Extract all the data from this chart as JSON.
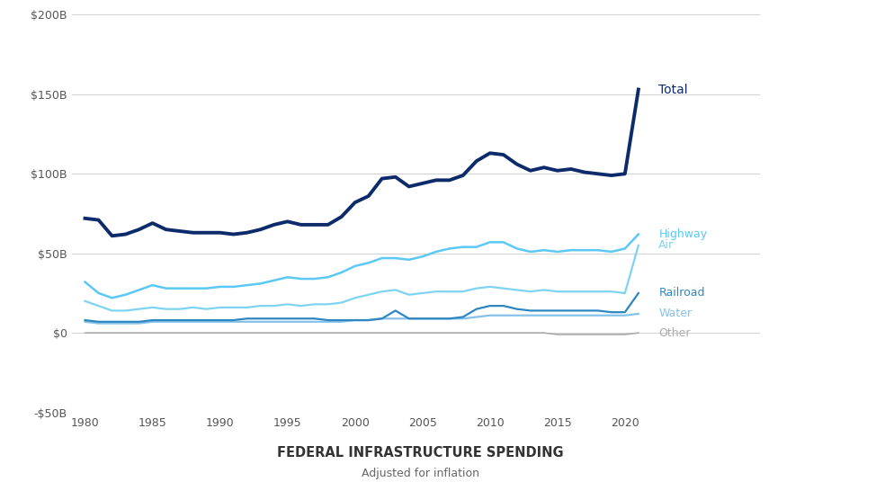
{
  "years": [
    1980,
    1981,
    1982,
    1983,
    1984,
    1985,
    1986,
    1987,
    1988,
    1989,
    1990,
    1991,
    1992,
    1993,
    1994,
    1995,
    1996,
    1997,
    1998,
    1999,
    2000,
    2001,
    2002,
    2003,
    2004,
    2005,
    2006,
    2007,
    2008,
    2009,
    2010,
    2011,
    2012,
    2013,
    2014,
    2015,
    2016,
    2017,
    2018,
    2019,
    2020,
    2021
  ],
  "total": [
    72,
    71,
    61,
    62,
    65,
    69,
    65,
    64,
    63,
    63,
    63,
    62,
    63,
    65,
    68,
    70,
    68,
    68,
    68,
    73,
    82,
    86,
    97,
    98,
    92,
    94,
    96,
    96,
    99,
    108,
    113,
    112,
    106,
    102,
    104,
    102,
    103,
    101,
    100,
    99,
    100,
    153
  ],
  "highway": [
    32,
    25,
    22,
    24,
    27,
    30,
    28,
    28,
    28,
    28,
    29,
    29,
    30,
    31,
    33,
    35,
    34,
    34,
    35,
    38,
    42,
    44,
    47,
    47,
    46,
    48,
    51,
    53,
    54,
    54,
    57,
    57,
    53,
    51,
    52,
    51,
    52,
    52,
    52,
    51,
    53,
    62
  ],
  "air": [
    20,
    17,
    14,
    14,
    15,
    16,
    15,
    15,
    16,
    15,
    16,
    16,
    16,
    17,
    17,
    18,
    17,
    18,
    18,
    19,
    22,
    24,
    26,
    27,
    24,
    25,
    26,
    26,
    26,
    28,
    29,
    28,
    27,
    26,
    27,
    26,
    26,
    26,
    26,
    26,
    25,
    55
  ],
  "railroad": [
    8,
    7,
    7,
    7,
    7,
    8,
    8,
    8,
    8,
    8,
    8,
    8,
    9,
    9,
    9,
    9,
    9,
    9,
    8,
    8,
    8,
    8,
    9,
    14,
    9,
    9,
    9,
    9,
    10,
    15,
    17,
    17,
    15,
    14,
    14,
    14,
    14,
    14,
    14,
    13,
    13,
    25
  ],
  "water": [
    7,
    6,
    6,
    6,
    6,
    7,
    7,
    7,
    7,
    7,
    7,
    7,
    7,
    7,
    7,
    7,
    7,
    7,
    7,
    7,
    8,
    8,
    9,
    9,
    9,
    9,
    9,
    9,
    9,
    10,
    11,
    11,
    11,
    11,
    11,
    11,
    11,
    11,
    11,
    11,
    11,
    12
  ],
  "other": [
    0,
    0,
    0,
    0,
    0,
    0,
    0,
    0,
    0,
    0,
    0,
    0,
    0,
    0,
    0,
    0,
    0,
    0,
    0,
    0,
    0,
    0,
    0,
    0,
    0,
    0,
    0,
    0,
    0,
    0,
    0,
    0,
    0,
    0,
    0,
    -1,
    -1,
    -1,
    -1,
    -1,
    -1,
    0
  ],
  "color_total": "#0d2b6b",
  "color_highway": "#5bc8f5",
  "color_air": "#7dd4f0",
  "color_railroad": "#2e86c1",
  "color_water": "#85c1e9",
  "color_other": "#aaaaaa",
  "title": "FEDERAL INFRASTRUCTURE SPENDING",
  "subtitle": "Adjusted for inflation",
  "ylim_min": -50,
  "ylim_max": 200,
  "yticks": [
    -50,
    0,
    50,
    100,
    150,
    200
  ],
  "ytick_labels": [
    "-$50B",
    "$0",
    "$50B",
    "$100B",
    "$150B",
    "$200B"
  ],
  "xtick_vals": [
    1980,
    1985,
    1990,
    1995,
    2000,
    2005,
    2010,
    2015,
    2020
  ],
  "background_color": "#ffffff",
  "grid_color": "#d0d0d0",
  "label_total": "Total",
  "label_highway": "Highway",
  "label_air": "Air",
  "label_railroad": "Railroad",
  "label_water": "Water",
  "label_other": "Other"
}
